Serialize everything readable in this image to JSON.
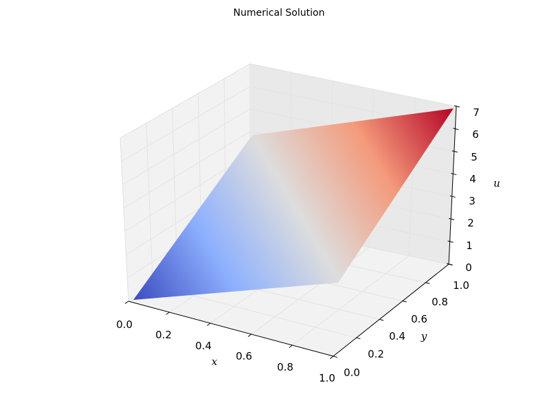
{
  "chart_data": {
    "type": "surface",
    "title": "Numerical Solution",
    "xlabel": "x",
    "ylabel": "y",
    "zlabel": "u",
    "xlim": [
      0,
      1
    ],
    "ylim": [
      0,
      1
    ],
    "zlim": [
      0,
      7
    ],
    "xticks": [
      "0.0",
      "0.2",
      "0.4",
      "0.6",
      "0.8",
      "1.0"
    ],
    "yticks": [
      "0.0",
      "0.2",
      "0.4",
      "0.6",
      "0.8",
      "1.0"
    ],
    "zticks": [
      "0",
      "1",
      "2",
      "3",
      "4",
      "5",
      "6",
      "7"
    ],
    "xtick_values": [
      0,
      0.2,
      0.4,
      0.6,
      0.8,
      1.0
    ],
    "ytick_values": [
      0,
      0.2,
      0.4,
      0.6,
      0.8,
      1.0
    ],
    "ztick_values": [
      0,
      1,
      2,
      3,
      4,
      5,
      6,
      7
    ],
    "surface_corners": [
      {
        "x": 0,
        "y": 0,
        "u": 0
      },
      {
        "x": 1,
        "y": 0,
        "u": 3.5
      },
      {
        "x": 0,
        "y": 1,
        "u": 3.5
      },
      {
        "x": 1,
        "y": 1,
        "u": 7
      }
    ],
    "colormap": "coolwarm",
    "colormap_colors": {
      "low": "#3b4cc0",
      "mid": "#dddddd",
      "high": "#b40426"
    },
    "grid": true
  }
}
